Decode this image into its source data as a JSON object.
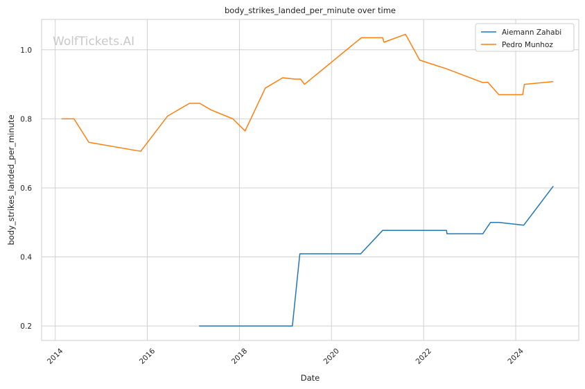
{
  "chart_data": {
    "type": "line",
    "title": "body_strikes_landed_per_minute over time",
    "xlabel": "Date",
    "ylabel": "body_strikes_landed_per_minute",
    "watermark": "WolfTickets.AI",
    "x_ticks": [
      "2014",
      "2016",
      "2018",
      "2020",
      "2022",
      "2024"
    ],
    "y_ticks": [
      "0.2",
      "0.4",
      "0.6",
      "0.8",
      "1.0"
    ],
    "xlim": [
      "2013-09-15",
      "2025-05-15"
    ],
    "ylim": [
      0.158,
      1.088
    ],
    "grid": true,
    "legend_position": "top-right",
    "series": [
      {
        "name": "Aiemann Zahabi",
        "color": "#1f77b4",
        "points": [
          [
            "2017-02-15",
            0.2
          ],
          [
            "2019-02-25",
            0.2
          ],
          [
            "2019-04-25",
            0.409
          ],
          [
            "2020-08-20",
            0.409
          ],
          [
            "2021-02-10",
            0.477
          ],
          [
            "2022-07-01",
            0.477
          ],
          [
            "2022-07-05",
            0.467
          ],
          [
            "2023-04-15",
            0.467
          ],
          [
            "2023-06-15",
            0.5
          ],
          [
            "2023-08-20",
            0.5
          ],
          [
            "2024-03-05",
            0.492
          ],
          [
            "2024-10-25",
            0.605
          ]
        ]
      },
      {
        "name": "Pedro Munhoz",
        "color": "#ff7f0e",
        "points": [
          [
            "2014-02-20",
            0.8
          ],
          [
            "2014-05-30",
            0.8
          ],
          [
            "2014-09-25",
            0.732
          ],
          [
            "2015-11-10",
            0.706
          ],
          [
            "2016-06-10",
            0.808
          ],
          [
            "2016-12-01",
            0.845
          ],
          [
            "2017-02-20",
            0.845
          ],
          [
            "2017-05-20",
            0.826
          ],
          [
            "2017-11-10",
            0.8
          ],
          [
            "2018-02-15",
            0.765
          ],
          [
            "2018-07-25",
            0.889
          ],
          [
            "2018-12-10",
            0.919
          ],
          [
            "2019-03-20",
            0.915
          ],
          [
            "2019-05-01",
            0.915
          ],
          [
            "2019-06-01",
            0.9
          ],
          [
            "2020-08-25",
            1.035
          ],
          [
            "2021-02-10",
            1.035
          ],
          [
            "2021-02-20",
            1.022
          ],
          [
            "2021-08-10",
            1.045
          ],
          [
            "2021-12-01",
            0.97
          ],
          [
            "2022-07-01",
            0.945
          ],
          [
            "2023-04-15",
            0.905
          ],
          [
            "2023-05-25",
            0.906
          ],
          [
            "2023-08-20",
            0.87
          ],
          [
            "2024-02-25",
            0.87
          ],
          [
            "2024-03-10",
            0.9
          ],
          [
            "2024-10-25",
            0.908
          ]
        ]
      }
    ]
  }
}
